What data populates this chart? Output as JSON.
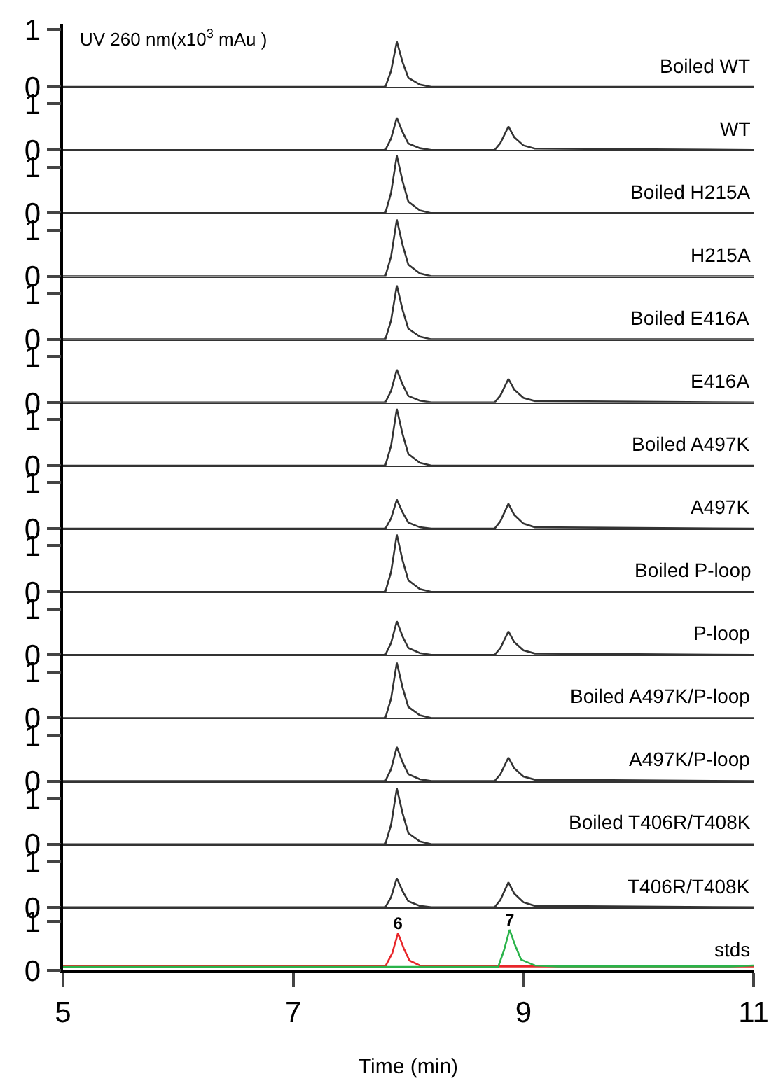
{
  "chart_data": [
    {
      "type": "line",
      "ylabel": "UV 260 nm(x10$^{3}$ mAu )",
      "annotations": [
        "Boiled WT"
      ],
      "x": [
        5,
        7.8,
        7.85,
        7.9,
        7.95,
        8.0,
        8.1,
        8.2,
        8.75,
        8.8,
        8.87,
        8.92,
        9.0,
        9.1,
        11
      ],
      "series": [
        {
          "color": "#333333",
          "values": [
            0,
            0,
            0.28,
            0.79,
            0.43,
            0.16,
            0.04,
            0,
            0,
            0,
            0,
            0,
            0,
            0,
            0
          ]
        }
      ],
      "xlim": [
        5,
        11
      ],
      "ylim": [
        0,
        1.1
      ],
      "yticks": [
        0,
        1
      ],
      "tick_labels": "y"
    },
    {
      "type": "line",
      "annotations": [
        "WT"
      ],
      "x": [
        5,
        7.8,
        7.85,
        7.9,
        7.95,
        8.0,
        8.1,
        8.2,
        8.75,
        8.8,
        8.87,
        8.92,
        9.0,
        9.1,
        11
      ],
      "series": [
        {
          "color": "#333333",
          "values": [
            0,
            0,
            0.25,
            0.7,
            0.39,
            0.14,
            0.04,
            0,
            0,
            0.15,
            0.51,
            0.28,
            0.1,
            0.03,
            0
          ]
        }
      ],
      "xlim": [
        5,
        11
      ],
      "ylim": [
        0,
        1.37
      ],
      "yticks": [
        0,
        1
      ],
      "tick_labels": "y"
    },
    {
      "type": "line",
      "annotations": [
        "Boiled H215A"
      ],
      "x": [
        5,
        7.8,
        7.85,
        7.9,
        7.95,
        8.0,
        8.1,
        8.2,
        8.75,
        8.8,
        8.87,
        8.92,
        9.0,
        9.1,
        11
      ],
      "series": [
        {
          "color": "#333333",
          "values": [
            0,
            0,
            0.44,
            1.25,
            0.69,
            0.25,
            0.06,
            0,
            0,
            0,
            0,
            0,
            0,
            0,
            0
          ]
        }
      ],
      "xlim": [
        5,
        11
      ],
      "ylim": [
        0,
        1.37
      ],
      "yticks": [
        0,
        1
      ],
      "tick_labels": "y"
    },
    {
      "type": "line",
      "annotations": [
        "H215A"
      ],
      "x": [
        5,
        7.8,
        7.85,
        7.9,
        7.95,
        8.0,
        8.1,
        8.2,
        8.75,
        8.8,
        8.87,
        8.92,
        9.0,
        9.1,
        11
      ],
      "series": [
        {
          "color": "#333333",
          "values": [
            0,
            0,
            0.43,
            1.23,
            0.68,
            0.25,
            0.06,
            0,
            0,
            0,
            0,
            0,
            0,
            0,
            0
          ]
        }
      ],
      "xlim": [
        5,
        11
      ],
      "ylim": [
        0,
        1.37
      ],
      "yticks": [
        0,
        1
      ],
      "tick_labels": "y"
    },
    {
      "type": "line",
      "annotations": [
        "Boiled E416A"
      ],
      "x": [
        5,
        7.8,
        7.85,
        7.9,
        7.95,
        8.0,
        8.1,
        8.2,
        8.75,
        8.8,
        8.87,
        8.92,
        9.0,
        9.1,
        11
      ],
      "series": [
        {
          "color": "#333333",
          "values": [
            0,
            0,
            0.41,
            1.17,
            0.64,
            0.23,
            0.06,
            0,
            0,
            0,
            0,
            0,
            0,
            0,
            0
          ]
        }
      ],
      "xlim": [
        5,
        11
      ],
      "ylim": [
        0,
        1.37
      ],
      "yticks": [
        0,
        1
      ],
      "tick_labels": "y"
    },
    {
      "type": "line",
      "annotations": [
        "E416A"
      ],
      "x": [
        5,
        7.8,
        7.85,
        7.9,
        7.95,
        8.0,
        8.1,
        8.2,
        8.75,
        8.8,
        8.87,
        8.92,
        9.0,
        9.1,
        11
      ],
      "series": [
        {
          "color": "#333333",
          "values": [
            0,
            0,
            0.25,
            0.71,
            0.39,
            0.14,
            0.04,
            0,
            0,
            0.15,
            0.51,
            0.28,
            0.1,
            0.03,
            0
          ]
        }
      ],
      "xlim": [
        5,
        11
      ],
      "ylim": [
        0,
        1.37
      ],
      "yticks": [
        0,
        1
      ],
      "tick_labels": "y"
    },
    {
      "type": "line",
      "annotations": [
        "Boiled A497K"
      ],
      "x": [
        5,
        7.8,
        7.85,
        7.9,
        7.95,
        8.0,
        8.1,
        8.2,
        8.75,
        8.8,
        8.87,
        8.92,
        9.0,
        9.1,
        11
      ],
      "series": [
        {
          "color": "#333333",
          "values": [
            0,
            0,
            0.43,
            1.23,
            0.68,
            0.25,
            0.06,
            0,
            0,
            0,
            0,
            0,
            0,
            0,
            0
          ]
        }
      ],
      "xlim": [
        5,
        11
      ],
      "ylim": [
        0,
        1.37
      ],
      "yticks": [
        0,
        1
      ],
      "tick_labels": "y"
    },
    {
      "type": "line",
      "annotations": [
        "A497K"
      ],
      "x": [
        5,
        7.8,
        7.85,
        7.9,
        7.95,
        8.0,
        8.1,
        8.2,
        8.75,
        8.8,
        8.87,
        8.92,
        9.0,
        9.1,
        11
      ],
      "series": [
        {
          "color": "#333333",
          "values": [
            0,
            0,
            0.22,
            0.63,
            0.35,
            0.13,
            0.03,
            0,
            0,
            0.16,
            0.54,
            0.3,
            0.11,
            0.03,
            0
          ]
        }
      ],
      "xlim": [
        5,
        11
      ],
      "ylim": [
        0,
        1.37
      ],
      "yticks": [
        0,
        1
      ],
      "tick_labels": "y"
    },
    {
      "type": "line",
      "annotations": [
        "Boiled P-loop"
      ],
      "x": [
        5,
        7.8,
        7.85,
        7.9,
        7.95,
        8.0,
        8.1,
        8.2,
        8.75,
        8.8,
        8.87,
        8.92,
        9.0,
        9.1,
        11
      ],
      "series": [
        {
          "color": "#333333",
          "values": [
            0,
            0,
            0.43,
            1.24,
            0.68,
            0.25,
            0.06,
            0,
            0,
            0,
            0,
            0,
            0,
            0,
            0
          ]
        }
      ],
      "xlim": [
        5,
        11
      ],
      "ylim": [
        0,
        1.37
      ],
      "yticks": [
        0,
        1
      ],
      "tick_labels": "y"
    },
    {
      "type": "line",
      "annotations": [
        "P-loop"
      ],
      "x": [
        5,
        7.8,
        7.85,
        7.9,
        7.95,
        8.0,
        8.1,
        8.2,
        8.75,
        8.8,
        8.87,
        8.92,
        9.0,
        9.1,
        11
      ],
      "series": [
        {
          "color": "#333333",
          "values": [
            0,
            0,
            0.26,
            0.73,
            0.4,
            0.15,
            0.04,
            0,
            0,
            0.15,
            0.51,
            0.28,
            0.1,
            0.03,
            0
          ]
        }
      ],
      "xlim": [
        5,
        11
      ],
      "ylim": [
        0,
        1.37
      ],
      "yticks": [
        0,
        1
      ],
      "tick_labels": "y"
    },
    {
      "type": "line",
      "annotations": [
        "Boiled A497K/P-loop"
      ],
      "x": [
        5,
        7.8,
        7.85,
        7.9,
        7.95,
        8.0,
        8.1,
        8.2,
        8.75,
        8.8,
        8.87,
        8.92,
        9.0,
        9.1,
        11
      ],
      "series": [
        {
          "color": "#333333",
          "values": [
            0,
            0,
            0.42,
            1.2,
            0.66,
            0.24,
            0.06,
            0,
            0,
            0,
            0,
            0,
            0,
            0,
            0
          ]
        }
      ],
      "xlim": [
        5,
        11
      ],
      "ylim": [
        0,
        1.37
      ],
      "yticks": [
        0,
        1
      ],
      "tick_labels": "y"
    },
    {
      "type": "line",
      "annotations": [
        "A497K/P-loop"
      ],
      "x": [
        5,
        7.8,
        7.85,
        7.9,
        7.95,
        8.0,
        8.1,
        8.2,
        8.75,
        8.8,
        8.87,
        8.92,
        9.0,
        9.1,
        11
      ],
      "series": [
        {
          "color": "#333333",
          "values": [
            0,
            0,
            0.26,
            0.74,
            0.41,
            0.15,
            0.04,
            0,
            0,
            0.15,
            0.51,
            0.28,
            0.1,
            0.03,
            0
          ]
        }
      ],
      "xlim": [
        5,
        11
      ],
      "ylim": [
        0,
        1.37
      ],
      "yticks": [
        0,
        1
      ],
      "tick_labels": "y"
    },
    {
      "type": "line",
      "annotations": [
        "Boiled T406R/T408K"
      ],
      "x": [
        5,
        7.8,
        7.85,
        7.9,
        7.95,
        8.0,
        8.1,
        8.2,
        8.75,
        8.8,
        8.87,
        8.92,
        9.0,
        9.1,
        11
      ],
      "series": [
        {
          "color": "#333333",
          "values": [
            0,
            0,
            0.42,
            1.21,
            0.67,
            0.24,
            0.06,
            0,
            0,
            0,
            0,
            0,
            0,
            0,
            0
          ]
        }
      ],
      "xlim": [
        5,
        11
      ],
      "ylim": [
        0,
        1.37
      ],
      "yticks": [
        0,
        1
      ],
      "tick_labels": "y"
    },
    {
      "type": "line",
      "annotations": [
        "T406R/T408K"
      ],
      "x": [
        5,
        7.8,
        7.85,
        7.9,
        7.95,
        8.0,
        8.1,
        8.2,
        8.75,
        8.8,
        8.87,
        8.92,
        9.0,
        9.1,
        11
      ],
      "series": [
        {
          "color": "#333333",
          "values": [
            0,
            0,
            0.22,
            0.63,
            0.35,
            0.13,
            0.03,
            0,
            0,
            0.16,
            0.54,
            0.3,
            0.11,
            0.03,
            0
          ]
        }
      ],
      "xlim": [
        5,
        11
      ],
      "ylim": [
        0,
        1.37
      ],
      "yticks": [
        0,
        1
      ],
      "tick_labels": "y"
    },
    {
      "type": "line",
      "xlabel": "Time (min)",
      "annotations": [
        "stds",
        {
          "text": "6",
          "x": 7.91,
          "y": 0.76
        },
        {
          "text": "7",
          "x": 8.88,
          "y": 0.83
        }
      ],
      "series": [
        {
          "color": "#e8262a",
          "x": [
            5,
            7.8,
            7.86,
            7.91,
            7.96,
            8.01,
            8.1,
            8.2,
            11
          ],
          "values": [
            0.08,
            0.08,
            0.35,
            0.76,
            0.45,
            0.2,
            0.1,
            0.08,
            0.08
          ]
        },
        {
          "color": "#2ab34a",
          "x": [
            5,
            8.78,
            8.83,
            8.88,
            8.93,
            8.98,
            9.1,
            9.3,
            10.8,
            11
          ],
          "values": [
            0.07,
            0.07,
            0.4,
            0.83,
            0.5,
            0.22,
            0.1,
            0.08,
            0.08,
            0.1
          ]
        }
      ],
      "xlim": [
        5,
        11
      ],
      "ylim": [
        0,
        1.29
      ],
      "xticks": [
        5,
        7,
        9,
        11
      ],
      "yticks": [
        0,
        1
      ]
    }
  ]
}
